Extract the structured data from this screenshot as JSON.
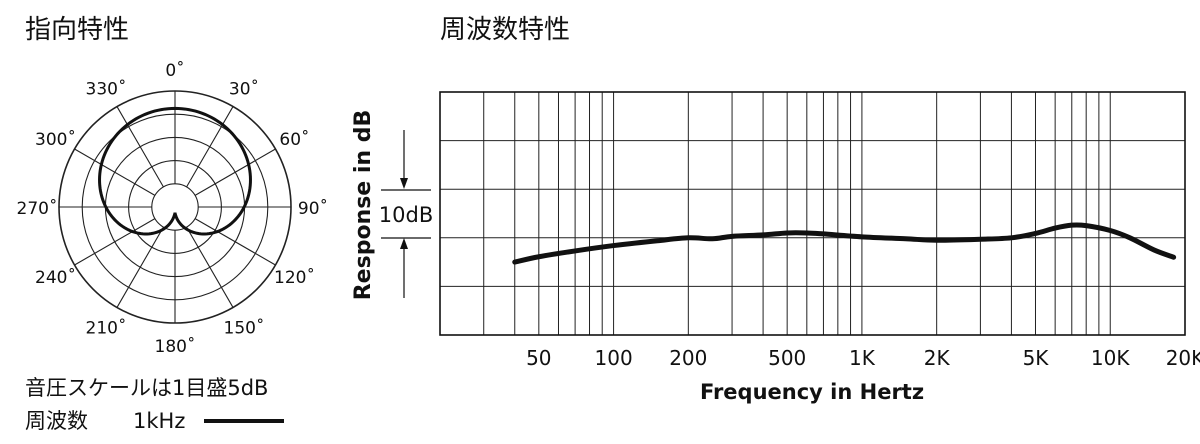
{
  "polar": {
    "title": "指向特性",
    "angle_labels": [
      "0˚",
      "30˚",
      "60˚",
      "90˚",
      "120˚",
      "150˚",
      "180˚",
      "210˚",
      "240˚",
      "270˚",
      "300˚",
      "330˚"
    ],
    "scale_note": "音圧スケールは1目盛5dB",
    "legend_label": "周波数",
    "legend_freq": "1kHz"
  },
  "freq": {
    "title": "周波数特性",
    "xlabel": "Frequency in Hertz",
    "ylabel": "Response in dB",
    "scale_label": "10dB",
    "tick_labels": [
      "50",
      "100",
      "200",
      "500",
      "1K",
      "2K",
      "5K",
      "10K",
      "20K"
    ]
  },
  "chart_data": [
    {
      "type": "polar",
      "title": "指向特性",
      "pattern": "cardioid",
      "frequency": "1kHz",
      "scale_db_per_division": 5,
      "divisions": 5,
      "angles_deg": [
        0,
        30,
        60,
        90,
        120,
        150,
        180,
        210,
        240,
        270,
        300,
        330
      ],
      "response_db": [
        0,
        -0.7,
        -2.5,
        -6,
        -11.5,
        -17.5,
        -22,
        -17.5,
        -11.5,
        -6,
        -2.5,
        -0.7
      ]
    },
    {
      "type": "line",
      "title": "周波数特性",
      "xlabel": "Frequency in Hertz",
      "ylabel": "Response in dB",
      "xscale": "log",
      "xlim": [
        20,
        20000
      ],
      "ylim": [
        -20,
        30
      ],
      "tick_values": [
        50,
        100,
        200,
        500,
        1000,
        2000,
        5000,
        10000,
        20000
      ],
      "series": [
        {
          "x": [
            40,
            50,
            70,
            100,
            150,
            200,
            250,
            300,
            400,
            500,
            600,
            700,
            1000,
            1500,
            2000,
            3000,
            4000,
            5000,
            6000,
            7000,
            8000,
            10000,
            12000,
            15000,
            18000
          ],
          "y": [
            -5,
            -3.9,
            -2.7,
            -1.6,
            -0.6,
            0,
            -0.2,
            0.3,
            0.6,
            1,
            1,
            0.8,
            0.2,
            -0.2,
            -0.5,
            -0.3,
            0,
            0.9,
            2,
            2.6,
            2.5,
            1.5,
            0,
            -2.5,
            -4
          ]
        }
      ]
    }
  ]
}
